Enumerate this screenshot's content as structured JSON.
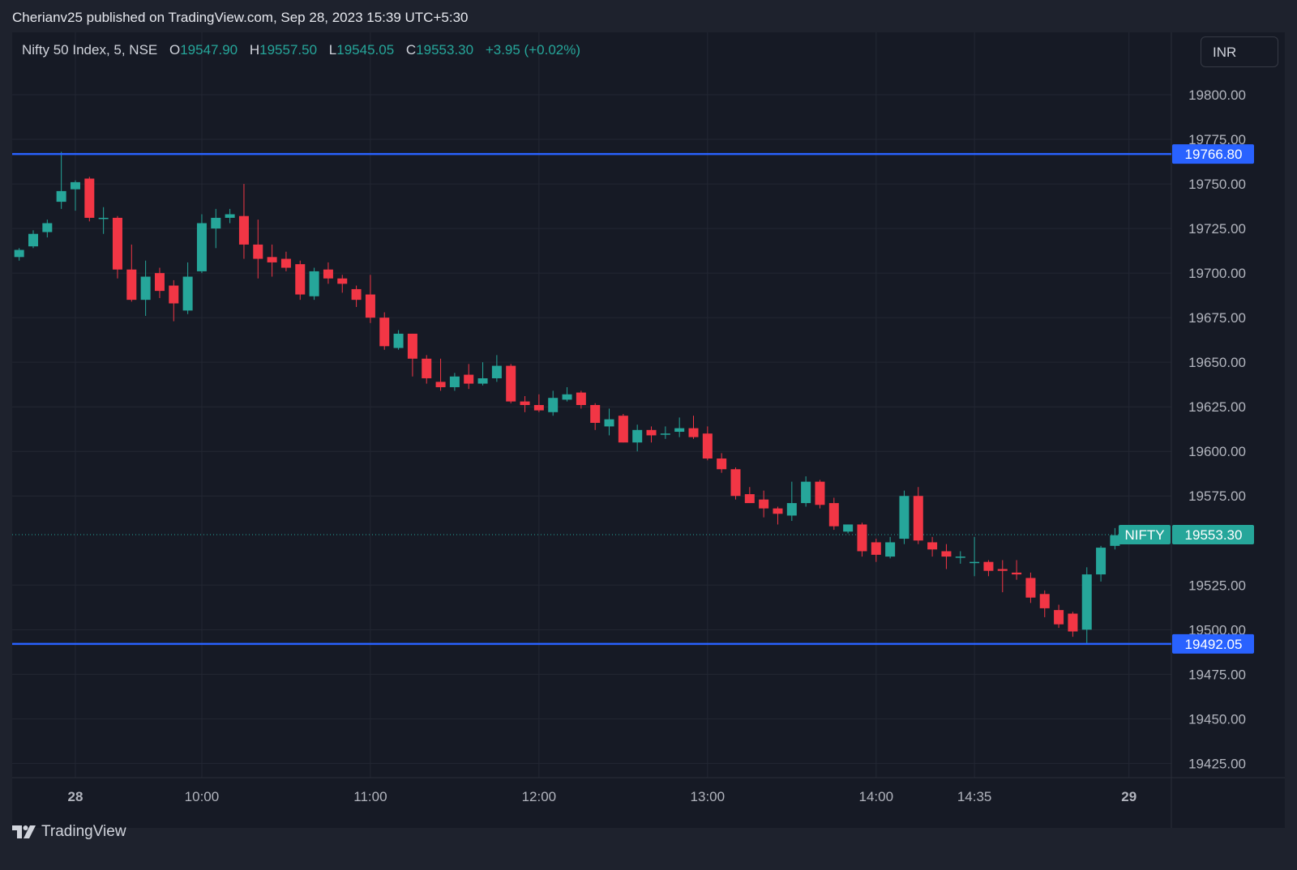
{
  "header": {
    "published_text": "Cherianv25 published on TradingView.com, Sep 28, 2023 15:39 UTC+5:30"
  },
  "legend": {
    "symbol": "Nifty 50 Index, 5, NSE",
    "o_label": "O",
    "o_value": "19547.90",
    "h_label": "H",
    "h_value": "19557.50",
    "l_label": "L",
    "l_value": "19545.05",
    "c_label": "C",
    "c_value": "19553.30",
    "change": "+3.95 (+0.02%)"
  },
  "currency_button": {
    "label": "INR"
  },
  "footer": {
    "brand": "TradingView"
  },
  "colors": {
    "up": "#26a69a",
    "down": "#f23645",
    "hline": "#2962ff",
    "grid": "#232733",
    "axis_text": "#b2b5be",
    "background": "#161a25"
  },
  "chart_data": {
    "type": "candlestick",
    "title": "Nifty 50 Index, 5, NSE",
    "timeframe_minutes": 5,
    "ylim": [
      19417,
      19835
    ],
    "y_ticks": [
      "19800.00",
      "19775.00",
      "19750.00",
      "19725.00",
      "19700.00",
      "19675.00",
      "19650.00",
      "19625.00",
      "19600.00",
      "19575.00",
      "19525.00",
      "19500.00",
      "19475.00",
      "19450.00",
      "19425.00"
    ],
    "x_ticks": [
      {
        "label": "28",
        "bar": 4,
        "bold": true
      },
      {
        "label": "10:00",
        "bar": 13
      },
      {
        "label": "11:00",
        "bar": 25
      },
      {
        "label": "12:00",
        "bar": 37
      },
      {
        "label": "13:00",
        "bar": 49
      },
      {
        "label": "14:00",
        "bar": 61
      },
      {
        "label": "14:35",
        "bar": 68
      },
      {
        "label": "29",
        "bar": 79,
        "bold": true
      }
    ],
    "horizontal_lines": [
      {
        "value": 19766.8,
        "label": "19766.80"
      },
      {
        "value": 19492.05,
        "label": "19492.05"
      }
    ],
    "last_price": {
      "value": 19553.3,
      "symbol": "NIFTY",
      "label": "19553.30"
    },
    "candles": [
      {
        "o": 19709,
        "h": 19714,
        "l": 19707,
        "c": 19713
      },
      {
        "o": 19715,
        "h": 19724,
        "l": 19714,
        "c": 19722
      },
      {
        "o": 19723,
        "h": 19730,
        "l": 19720,
        "c": 19728
      },
      {
        "o": 19740,
        "h": 19768,
        "l": 19736,
        "c": 19746
      },
      {
        "o": 19747,
        "h": 19752,
        "l": 19735,
        "c": 19751
      },
      {
        "o": 19753,
        "h": 19754,
        "l": 19729,
        "c": 19731
      },
      {
        "o": 19731,
        "h": 19737,
        "l": 19722,
        "c": 19731
      },
      {
        "o": 19731,
        "h": 19732,
        "l": 19697,
        "c": 19702
      },
      {
        "o": 19702,
        "h": 19716,
        "l": 19684,
        "c": 19685
      },
      {
        "o": 19685,
        "h": 19707,
        "l": 19676,
        "c": 19698
      },
      {
        "o": 19700,
        "h": 19703,
        "l": 19686,
        "c": 19690
      },
      {
        "o": 19693,
        "h": 19696,
        "l": 19673,
        "c": 19683
      },
      {
        "o": 19679,
        "h": 19706,
        "l": 19677,
        "c": 19698
      },
      {
        "o": 19701,
        "h": 19733,
        "l": 19700,
        "c": 19728
      },
      {
        "o": 19725,
        "h": 19736,
        "l": 19714,
        "c": 19731
      },
      {
        "o": 19731,
        "h": 19736,
        "l": 19728,
        "c": 19733
      },
      {
        "o": 19732,
        "h": 19750,
        "l": 19708,
        "c": 19716
      },
      {
        "o": 19716,
        "h": 19730,
        "l": 19697,
        "c": 19708
      },
      {
        "o": 19709,
        "h": 19716,
        "l": 19698,
        "c": 19706
      },
      {
        "o": 19708,
        "h": 19712,
        "l": 19701,
        "c": 19703
      },
      {
        "o": 19705,
        "h": 19707,
        "l": 19685,
        "c": 19688
      },
      {
        "o": 19687,
        "h": 19703,
        "l": 19685,
        "c": 19701
      },
      {
        "o": 19702,
        "h": 19706,
        "l": 19694,
        "c": 19697
      },
      {
        "o": 19697,
        "h": 19699,
        "l": 19689,
        "c": 19694
      },
      {
        "o": 19691,
        "h": 19693,
        "l": 19681,
        "c": 19685
      },
      {
        "o": 19688,
        "h": 19699,
        "l": 19672,
        "c": 19675
      },
      {
        "o": 19675,
        "h": 19678,
        "l": 19657,
        "c": 19659
      },
      {
        "o": 19658,
        "h": 19668,
        "l": 19657,
        "c": 19666
      },
      {
        "o": 19666,
        "h": 19666,
        "l": 19642,
        "c": 19652
      },
      {
        "o": 19652,
        "h": 19654,
        "l": 19638,
        "c": 19641
      },
      {
        "o": 19639,
        "h": 19652,
        "l": 19634,
        "c": 19636
      },
      {
        "o": 19636,
        "h": 19644,
        "l": 19634,
        "c": 19642
      },
      {
        "o": 19643,
        "h": 19649,
        "l": 19635,
        "c": 19638
      },
      {
        "o": 19638,
        "h": 19650,
        "l": 19637,
        "c": 19641
      },
      {
        "o": 19641,
        "h": 19654,
        "l": 19639,
        "c": 19648
      },
      {
        "o": 19648,
        "h": 19649,
        "l": 19627,
        "c": 19628
      },
      {
        "o": 19628,
        "h": 19631,
        "l": 19622,
        "c": 19626
      },
      {
        "o": 19626,
        "h": 19632,
        "l": 19622,
        "c": 19623
      },
      {
        "o": 19622,
        "h": 19634,
        "l": 19620,
        "c": 19630
      },
      {
        "o": 19629,
        "h": 19636,
        "l": 19628,
        "c": 19632
      },
      {
        "o": 19633,
        "h": 19634,
        "l": 19624,
        "c": 19626
      },
      {
        "o": 19626,
        "h": 19627,
        "l": 19612,
        "c": 19616
      },
      {
        "o": 19614,
        "h": 19624,
        "l": 19609,
        "c": 19618
      },
      {
        "o": 19620,
        "h": 19621,
        "l": 19605,
        "c": 19605
      },
      {
        "o": 19605,
        "h": 19615,
        "l": 19600,
        "c": 19612
      },
      {
        "o": 19612,
        "h": 19614,
        "l": 19605,
        "c": 19609
      },
      {
        "o": 19610,
        "h": 19614,
        "l": 19607,
        "c": 19610
      },
      {
        "o": 19611,
        "h": 19619,
        "l": 19608,
        "c": 19613
      },
      {
        "o": 19613,
        "h": 19620,
        "l": 19607,
        "c": 19608
      },
      {
        "o": 19610,
        "h": 19614,
        "l": 19595,
        "c": 19596
      },
      {
        "o": 19596,
        "h": 19599,
        "l": 19588,
        "c": 19590
      },
      {
        "o": 19590,
        "h": 19591,
        "l": 19573,
        "c": 19575
      },
      {
        "o": 19576,
        "h": 19580,
        "l": 19571,
        "c": 19571
      },
      {
        "o": 19573,
        "h": 19578,
        "l": 19563,
        "c": 19568
      },
      {
        "o": 19568,
        "h": 19569,
        "l": 19559,
        "c": 19565
      },
      {
        "o": 19564,
        "h": 19583,
        "l": 19561,
        "c": 19571
      },
      {
        "o": 19571,
        "h": 19586,
        "l": 19569,
        "c": 19583
      },
      {
        "o": 19583,
        "h": 19584,
        "l": 19568,
        "c": 19570
      },
      {
        "o": 19571,
        "h": 19574,
        "l": 19556,
        "c": 19558
      },
      {
        "o": 19555,
        "h": 19559,
        "l": 19554,
        "c": 19559
      },
      {
        "o": 19559,
        "h": 19560,
        "l": 19541,
        "c": 19544
      },
      {
        "o": 19549,
        "h": 19551,
        "l": 19538,
        "c": 19542
      },
      {
        "o": 19541,
        "h": 19552,
        "l": 19540,
        "c": 19549
      },
      {
        "o": 19551,
        "h": 19578,
        "l": 19548,
        "c": 19575
      },
      {
        "o": 19575,
        "h": 19580,
        "l": 19548,
        "c": 19550
      },
      {
        "o": 19549,
        "h": 19552,
        "l": 19541,
        "c": 19545
      },
      {
        "o": 19544,
        "h": 19548,
        "l": 19534,
        "c": 19541
      },
      {
        "o": 19541,
        "h": 19544,
        "l": 19537,
        "c": 19541
      },
      {
        "o": 19538,
        "h": 19552,
        "l": 19530,
        "c": 19538
      },
      {
        "o": 19538,
        "h": 19539,
        "l": 19530,
        "c": 19533
      },
      {
        "o": 19534,
        "h": 19539,
        "l": 19521,
        "c": 19533
      },
      {
        "o": 19532,
        "h": 19539,
        "l": 19528,
        "c": 19531
      },
      {
        "o": 19529,
        "h": 19532,
        "l": 19515,
        "c": 19518
      },
      {
        "o": 19520,
        "h": 19522,
        "l": 19507,
        "c": 19512
      },
      {
        "o": 19511,
        "h": 19514,
        "l": 19501,
        "c": 19503
      },
      {
        "o": 19509,
        "h": 19510,
        "l": 19496,
        "c": 19499
      },
      {
        "o": 19500,
        "h": 19535,
        "l": 19492,
        "c": 19531
      },
      {
        "o": 19531,
        "h": 19547,
        "l": 19527,
        "c": 19546
      },
      {
        "o": 19547,
        "h": 19557,
        "l": 19545,
        "c": 19553
      }
    ]
  }
}
